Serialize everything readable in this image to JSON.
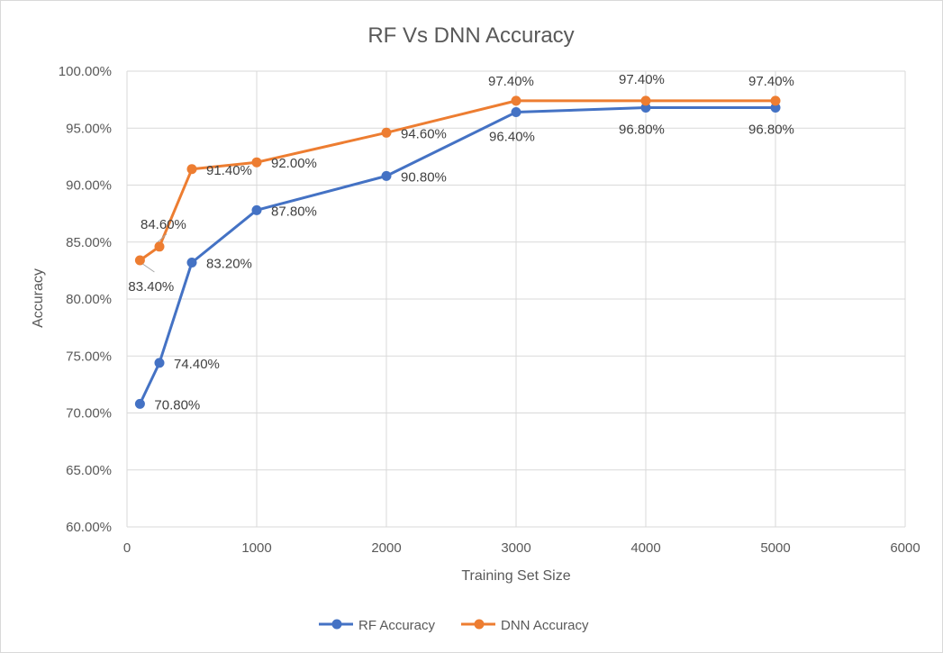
{
  "chart_data": {
    "type": "line",
    "title": "RF Vs DNN Accuracy",
    "xlabel": "Training Set Size",
    "ylabel": "Accuracy",
    "xlim": [
      0,
      6000
    ],
    "ylim": [
      60,
      100
    ],
    "x_ticks": [
      "0",
      "1000",
      "2000",
      "3000",
      "4000",
      "5000",
      "6000"
    ],
    "y_ticks": [
      "60.00%",
      "65.00%",
      "70.00%",
      "75.00%",
      "80.00%",
      "85.00%",
      "90.00%",
      "95.00%",
      "100.00%"
    ],
    "grid": true,
    "legend_position": "bottom",
    "series": [
      {
        "name": "RF Accuracy",
        "color": "#4472C4",
        "x": [
          100,
          250,
          500,
          1000,
          2000,
          3000,
          4000,
          5000
        ],
        "y": [
          70.8,
          74.4,
          83.2,
          87.8,
          90.8,
          96.4,
          96.8,
          96.8
        ],
        "labels": [
          "70.80%",
          "74.40%",
          "83.20%",
          "87.80%",
          "90.80%",
          "96.40%",
          "96.80%",
          "96.80%"
        ]
      },
      {
        "name": "DNN Accuracy",
        "color": "#ED7D31",
        "x": [
          100,
          250,
          500,
          1000,
          2000,
          3000,
          4000,
          5000
        ],
        "y": [
          83.4,
          84.6,
          91.4,
          92.0,
          94.6,
          97.4,
          97.4,
          97.4
        ],
        "labels": [
          "83.40%",
          "84.60%",
          "91.40%",
          "92.00%",
          "94.60%",
          "97.40%",
          "97.40%",
          "97.40%"
        ]
      }
    ]
  }
}
